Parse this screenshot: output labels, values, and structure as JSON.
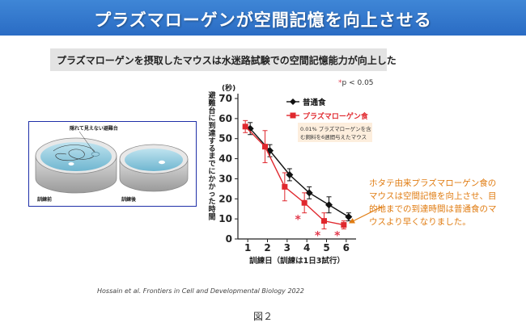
{
  "banner": {
    "title": "プラズマローゲンが空間記憶を向上させる"
  },
  "subtitle": "プラズマローゲンを摂取したマウスは水迷路試験での空間記憶能力が向上した",
  "significance_note": {
    "star": "*",
    "text": "p < 0.05"
  },
  "illustration": {
    "label_platform": "隠れて見えない避難台",
    "label_before": "訓練前",
    "label_after": "訓練後"
  },
  "chart_data": {
    "type": "line",
    "x": [
      1,
      2,
      3,
      4,
      5,
      6
    ],
    "xlabel": "訓練日（訓練は1日3試行）",
    "ylabel": "避難台に到達するまでにかかった時間",
    "yunit": "(秒)",
    "ylim": [
      0,
      70
    ],
    "yticks": [
      0,
      10,
      20,
      30,
      40,
      50,
      60,
      70
    ],
    "grid": false,
    "legend_placement": "top-right",
    "series": [
      {
        "name": "普通食",
        "color": "#111111",
        "marker": "diamond",
        "values": [
          55,
          44,
          32,
          23,
          17,
          11
        ],
        "errors": [
          3,
          3,
          3,
          3,
          4,
          2
        ]
      },
      {
        "name": "プラズマローゲン食",
        "color": "#e0282e",
        "marker": "square",
        "values": [
          56,
          46,
          26,
          18,
          9,
          7
        ],
        "errors": [
          3,
          8,
          7,
          5,
          4,
          2
        ]
      }
    ],
    "legend_note": "0.01% プラズマローゲンを含む飼料を6週間与えたマウス",
    "significant_x": [
      4,
      5,
      6
    ],
    "significance_marker": "*"
  },
  "annotation": {
    "text": "ホタテ由来プラズマローゲン食のマウスは空間記憶を向上させ、目的地までの到達時間は普通食のマウスより早くなりました。",
    "color": "#e07c12"
  },
  "citation": "Hossain et al. Frontiers in Cell and Developmental Biology 2022",
  "figure_label": "図２"
}
